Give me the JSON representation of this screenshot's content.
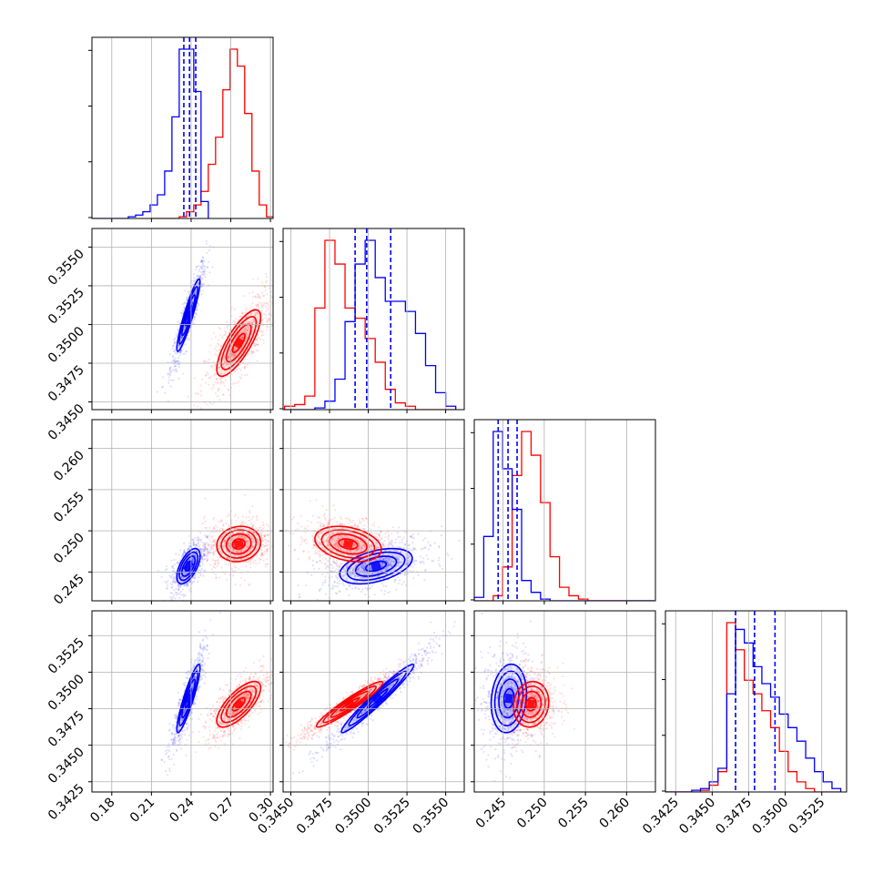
{
  "chart_data": {
    "type": "corner",
    "grid": true,
    "series": [
      {
        "name": "",
        "color": "#0000ff",
        "role": "samples with quantile lines"
      },
      {
        "name": "",
        "color": "#ff0000",
        "role": "samples"
      }
    ],
    "parameters": [
      {
        "index": 0,
        "xlim": [
          0.165,
          0.302
        ],
        "ticks": [
          0.18,
          0.21,
          0.24,
          0.27,
          0.3
        ],
        "tick_labels": [
          "0.18",
          "0.21",
          "0.24",
          "0.27",
          "0.30"
        ]
      },
      {
        "index": 1,
        "xlim": [
          0.3445,
          0.3562
        ],
        "ticks": [
          0.345,
          0.3475,
          0.35,
          0.3525,
          0.355
        ],
        "tick_labels": [
          "0.3450",
          "0.3475",
          "0.3500",
          "0.3525",
          "0.3550"
        ]
      },
      {
        "index": 2,
        "xlim": [
          0.2415,
          0.2635
        ],
        "ticks": [
          0.245,
          0.25,
          0.255,
          0.26
        ],
        "tick_labels": [
          "0.245",
          "0.250",
          "0.255",
          "0.260"
        ]
      },
      {
        "index": 3,
        "xlim": [
          0.3418,
          0.3542
        ],
        "ticks": [
          0.3425,
          0.345,
          0.3475,
          0.35,
          0.3525
        ],
        "tick_labels": [
          "0.3425",
          "0.3450",
          "0.3475",
          "0.3500",
          "0.3525"
        ]
      }
    ],
    "marginals": [
      {
        "param": 0,
        "blue": {
          "edges": [
            0.165,
            0.1705,
            0.176,
            0.1815,
            0.187,
            0.1925,
            0.198,
            0.2035,
            0.209,
            0.2145,
            0.22,
            0.2255,
            0.231,
            0.2365,
            0.242,
            0.2475,
            0.253
          ],
          "counts": [
            0,
            0,
            0,
            0,
            0,
            1,
            2,
            4,
            8,
            14,
            28,
            60,
            100,
            100,
            75,
            10
          ]
        },
        "red": {
          "edges": [
            0.209,
            0.2145,
            0.22,
            0.2255,
            0.231,
            0.2365,
            0.242,
            0.2475,
            0.253,
            0.2585,
            0.264,
            0.2695,
            0.275,
            0.2805,
            0.286,
            0.2915,
            0.297,
            0.3025
          ],
          "counts": [
            0,
            0,
            0,
            0,
            1,
            4,
            8,
            16,
            32,
            48,
            76,
            100,
            90,
            62,
            28,
            8,
            1
          ]
        },
        "quantiles_blue": [
          0.2345,
          0.2388,
          0.2435
        ],
        "ymax": 100
      },
      {
        "param": 1,
        "blue": {
          "edges": [
            0.3446,
            0.34525,
            0.3459,
            0.34655,
            0.3472,
            0.34785,
            0.3485,
            0.34915,
            0.3498,
            0.35045,
            0.3511,
            0.35175,
            0.3524,
            0.35305,
            0.3537,
            0.35435,
            0.355,
            0.35565
          ],
          "counts": [
            0,
            0,
            0,
            1,
            5,
            18,
            52,
            86,
            100,
            78,
            64,
            64,
            58,
            45,
            26,
            10,
            2
          ]
        },
        "red": {
          "edges": [
            0.3446,
            0.34525,
            0.3459,
            0.34655,
            0.3472,
            0.34785,
            0.3485,
            0.34915,
            0.3498,
            0.35045,
            0.3511,
            0.35175,
            0.3524,
            0.35305,
            0.3537,
            0.35435,
            0.355,
            0.35565
          ],
          "counts": [
            2,
            3,
            8,
            60,
            100,
            86,
            60,
            54,
            42,
            28,
            12,
            4,
            2,
            0,
            0,
            0,
            0
          ]
        },
        "quantiles_blue": [
          0.34915,
          0.3499,
          0.35145
        ],
        "ymax": 100
      },
      {
        "param": 2,
        "blue": {
          "edges": [
            0.2415,
            0.24265,
            0.2438,
            0.24495,
            0.2461,
            0.24725,
            0.2484,
            0.24955,
            0.2507,
            0.25185,
            0.253,
            0.25415,
            0.2553,
            0.25645,
            0.2576,
            0.25875,
            0.2599,
            0.26105,
            0.2622,
            0.26335
          ],
          "counts": [
            2,
            38,
            100,
            78,
            54,
            12,
            5,
            1,
            0,
            0,
            0,
            0,
            0,
            0,
            0,
            0,
            0,
            0,
            0
          ]
        },
        "red": {
          "edges": [
            0.2415,
            0.24265,
            0.2438,
            0.24495,
            0.2461,
            0.24725,
            0.2484,
            0.24955,
            0.2507,
            0.25185,
            0.253,
            0.25415,
            0.2553,
            0.25645,
            0.2576,
            0.25875,
            0.2599,
            0.26105,
            0.2622,
            0.26335
          ],
          "counts": [
            0,
            0,
            3,
            20,
            74,
            100,
            86,
            58,
            26,
            8,
            3,
            1,
            0,
            0,
            0,
            0,
            0,
            0,
            0
          ]
        },
        "quantiles_blue": [
          0.2444,
          0.2456,
          0.2467
        ],
        "ymax": 100
      },
      {
        "param": 3,
        "blue": {
          "edges": [
            0.3418,
            0.3424,
            0.343,
            0.3436,
            0.3442,
            0.3448,
            0.3454,
            0.346,
            0.3466,
            0.3472,
            0.3478,
            0.3484,
            0.349,
            0.3496,
            0.3502,
            0.3508,
            0.3514,
            0.352,
            0.3526,
            0.3532,
            0.3538
          ],
          "counts": [
            0,
            0,
            0,
            1,
            2,
            6,
            14,
            58,
            96,
            88,
            74,
            64,
            56,
            46,
            38,
            30,
            20,
            12,
            6,
            2
          ]
        },
        "red": {
          "edges": [
            0.3418,
            0.3424,
            0.343,
            0.3436,
            0.3442,
            0.3448,
            0.3454,
            0.346,
            0.3466,
            0.3472,
            0.3478,
            0.3484,
            0.349,
            0.3496,
            0.3502,
            0.3508,
            0.3514,
            0.352,
            0.3526,
            0.3532,
            0.3538
          ],
          "counts": [
            0,
            0,
            0,
            0,
            1,
            4,
            12,
            100,
            84,
            66,
            58,
            48,
            38,
            24,
            12,
            6,
            2,
            0,
            0,
            0
          ]
        },
        "quantiles_blue": [
          0.3466,
          0.3479,
          0.3493
        ],
        "ymax": 100
      }
    ],
    "joint": [
      {
        "x": 0,
        "y": 1,
        "blue": {
          "center": [
            0.238,
            0.3506
          ],
          "sd": [
            0.0045,
            0.0012
          ],
          "rho": 0.92
        },
        "red": {
          "center": [
            0.276,
            0.3488
          ],
          "sd": [
            0.0085,
            0.0011
          ],
          "rho": 0.78
        }
      },
      {
        "x": 0,
        "y": 2,
        "blue": {
          "center": [
            0.238,
            0.2457
          ],
          "sd": [
            0.0045,
            0.0011
          ],
          "rho": 0.6
        },
        "red": {
          "center": [
            0.276,
            0.2484
          ],
          "sd": [
            0.0085,
            0.0011
          ],
          "rho": 0.1
        }
      },
      {
        "x": 1,
        "y": 2,
        "blue": {
          "center": [
            0.3505,
            0.2457
          ],
          "sd": [
            0.0012,
            0.0011
          ],
          "rho": 0.45
        },
        "red": {
          "center": [
            0.3487,
            0.2484
          ],
          "sd": [
            0.0011,
            0.0011
          ],
          "rho": -0.3
        }
      },
      {
        "x": 0,
        "y": 3,
        "blue": {
          "center": [
            0.238,
            0.3482
          ],
          "sd": [
            0.0045,
            0.0012
          ],
          "rho": 0.9
        },
        "red": {
          "center": [
            0.276,
            0.3478
          ],
          "sd": [
            0.0085,
            0.0008
          ],
          "rho": 0.72
        }
      },
      {
        "x": 1,
        "y": 3,
        "blue": {
          "center": [
            0.3506,
            0.3482
          ],
          "sd": [
            0.0012,
            0.0012
          ],
          "rho": 0.97
        },
        "red": {
          "center": [
            0.3488,
            0.3478
          ],
          "sd": [
            0.0011,
            0.0008
          ],
          "rho": 0.95
        }
      },
      {
        "x": 2,
        "y": 3,
        "blue": {
          "center": [
            0.2457,
            0.3482
          ],
          "sd": [
            0.0011,
            0.0012
          ],
          "rho": 0.15
        },
        "red": {
          "center": [
            0.2484,
            0.3478
          ],
          "sd": [
            0.0011,
            0.0008
          ],
          "rho": 0.1
        }
      }
    ]
  }
}
